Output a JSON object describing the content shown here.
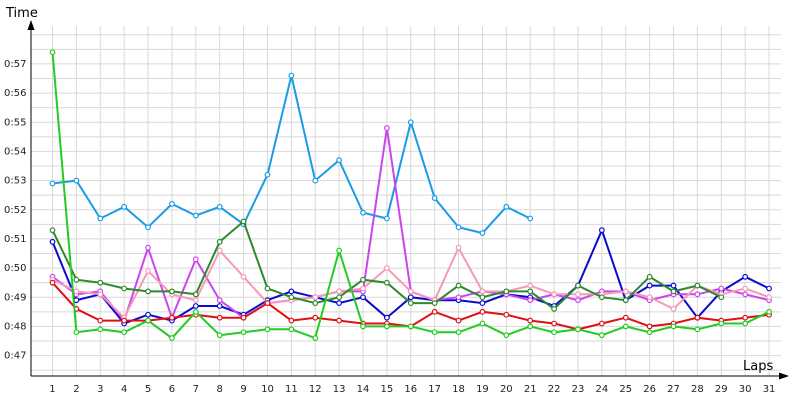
{
  "chart_data": {
    "type": "line",
    "xlabel": "Laps",
    "ylabel": "Time",
    "x": [
      1,
      2,
      3,
      4,
      5,
      6,
      7,
      8,
      9,
      10,
      11,
      12,
      13,
      14,
      15,
      16,
      17,
      18,
      19,
      20,
      21,
      22,
      23,
      24,
      25,
      26,
      27,
      28,
      29,
      30,
      31
    ],
    "y_ticks": [
      "0:47",
      "0:48",
      "0:49",
      "0:50",
      "0:51",
      "0:52",
      "0:53",
      "0:54",
      "0:55",
      "0:56",
      "0:57"
    ],
    "x_ticks": [
      "1",
      "2",
      "3",
      "4",
      "5",
      "6",
      "7",
      "8",
      "9",
      "10",
      "11",
      "12",
      "13",
      "14",
      "15",
      "16",
      "17",
      "18",
      "19",
      "20",
      "21",
      "22",
      "23",
      "24",
      "25",
      "26",
      "27",
      "28",
      "29",
      "30",
      "31"
    ],
    "ylim": [
      46.3,
      58.3
    ],
    "xlim": [
      0.1,
      31.5
    ],
    "grid": true,
    "series": [
      {
        "color": "#1a9be6",
        "values": [
          52.9,
          53.0,
          51.7,
          52.1,
          51.4,
          52.2,
          51.8,
          52.1,
          51.5,
          53.2,
          56.6,
          53.0,
          53.7,
          51.9,
          51.7,
          55.0,
          52.4,
          51.4,
          51.2,
          52.1,
          51.7,
          null,
          null,
          null,
          null,
          null,
          null,
          null,
          null,
          null,
          null
        ]
      },
      {
        "color": "#0a0ad0",
        "values": [
          50.9,
          48.9,
          49.1,
          48.1,
          48.4,
          48.2,
          48.7,
          48.7,
          48.4,
          48.9,
          49.2,
          49.0,
          48.8,
          49.0,
          48.3,
          49.0,
          48.9,
          48.9,
          48.8,
          49.1,
          49.0,
          48.7,
          49.4,
          51.3,
          48.9,
          49.4,
          49.4,
          48.3,
          49.2,
          49.7,
          49.3
        ]
      },
      {
        "color": "#cc44ee",
        "values": [
          49.7,
          49.1,
          49.2,
          48.2,
          50.7,
          48.3,
          50.3,
          48.9,
          48.3,
          48.8,
          48.9,
          49.0,
          49.2,
          49.2,
          54.8,
          49.2,
          48.9,
          49.0,
          49.2,
          49.1,
          48.9,
          49.1,
          48.9,
          49.2,
          49.2,
          48.9,
          49.1,
          49.1,
          49.3,
          49.1,
          48.9
        ]
      },
      {
        "color": "#f59ab8",
        "values": [
          49.6,
          49.2,
          49.1,
          48.3,
          49.9,
          49.1,
          48.9,
          50.6,
          49.7,
          48.8,
          48.9,
          49.0,
          49.2,
          49.3,
          50.0,
          49.2,
          48.9,
          50.7,
          49.2,
          49.2,
          49.4,
          49.1,
          49.1,
          49.1,
          49.2,
          49.0,
          48.6,
          49.4,
          49.1,
          49.3,
          49.0
        ]
      },
      {
        "color": "#e01010",
        "values": [
          49.5,
          48.6,
          48.2,
          48.2,
          48.2,
          48.3,
          48.4,
          48.3,
          48.3,
          48.8,
          48.2,
          48.3,
          48.2,
          48.1,
          48.1,
          48.0,
          48.5,
          48.2,
          48.5,
          48.4,
          48.2,
          48.1,
          47.9,
          48.1,
          48.3,
          48.0,
          48.1,
          48.3,
          48.2,
          48.3,
          48.4
        ]
      },
      {
        "color": "#2c8a2c",
        "values": [
          51.3,
          49.6,
          49.5,
          49.3,
          49.2,
          49.2,
          49.1,
          50.9,
          51.6,
          49.3,
          49.0,
          48.8,
          49.0,
          49.6,
          49.5,
          48.8,
          48.8,
          49.4,
          49.0,
          49.2,
          49.2,
          48.6,
          49.4,
          49.0,
          48.9,
          49.7,
          49.2,
          49.4,
          49.0,
          null,
          null
        ]
      },
      {
        "color": "#22cc22",
        "values": [
          57.4,
          47.8,
          47.9,
          47.8,
          48.2,
          47.6,
          48.5,
          47.7,
          47.8,
          47.9,
          47.9,
          47.6,
          50.6,
          48.0,
          48.0,
          48.0,
          47.8,
          47.8,
          48.1,
          47.7,
          48.0,
          47.8,
          47.9,
          47.7,
          48.0,
          47.8,
          48.0,
          47.9,
          48.1,
          48.1,
          48.5
        ]
      }
    ]
  }
}
